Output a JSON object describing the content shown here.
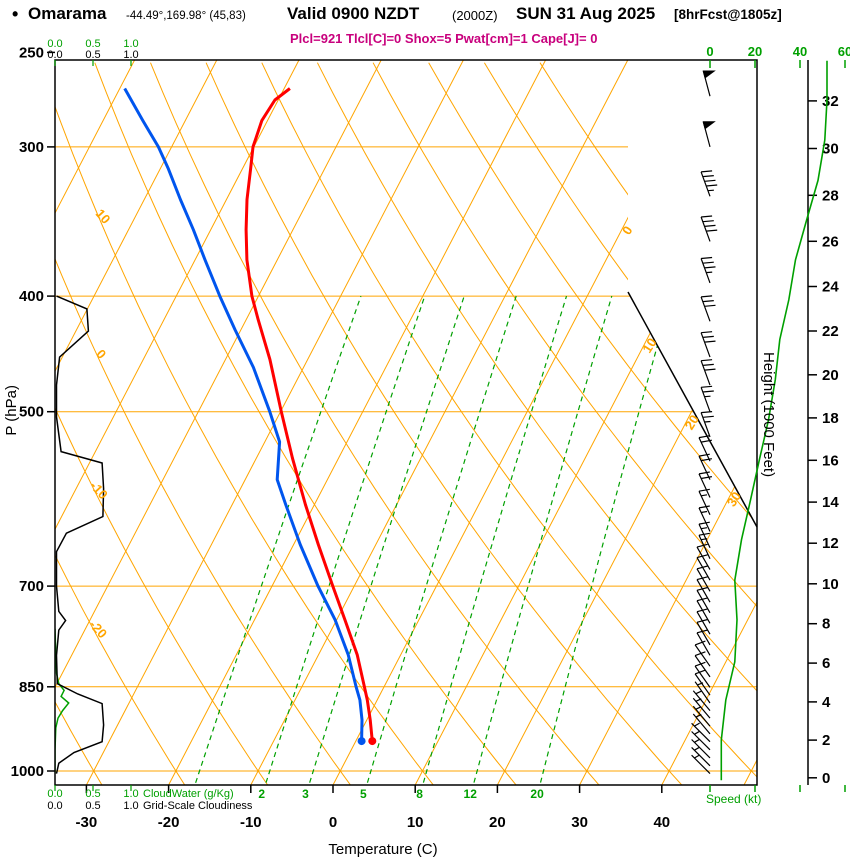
{
  "header": {
    "bullet": "•",
    "station": "Omarama",
    "coords": "-44.49°,169.98° (45,83)",
    "valid": "Valid 0900 NZDT",
    "valid_zulu": "(2000Z)",
    "date": "SUN 31 Aug 2025",
    "forecast": "[8hrFcst@1805z]",
    "indices": "Plcl=921 Tlcl[C]=0 Shox=5 Pwat[cm]=1 Cape[J]= 0"
  },
  "axes": {
    "pressure_label": "P (hPa)",
    "pressure_ticks": [
      250,
      300,
      400,
      500,
      700,
      850,
      1000
    ],
    "temperature_label": "Temperature (C)",
    "temperature_ticks": [
      -30,
      -20,
      -10,
      0,
      10,
      20,
      30,
      40
    ],
    "height_label": "Height (1000 Feet)",
    "height_ticks": [
      0,
      2,
      4,
      6,
      8,
      10,
      12,
      14,
      16,
      18,
      20,
      22,
      24,
      26,
      28,
      30,
      32
    ],
    "speed_label": "Speed (kt)",
    "speed_ticks": [
      0,
      20,
      40,
      60
    ],
    "cloud_scale": [
      "0.0",
      "0.5",
      "1.0"
    ],
    "cloudwater_label": "CloudWater (g/Kg)",
    "cloudiness_label": "Grid-Scale Cloudiness"
  },
  "colors": {
    "grid_orange": "#FFA500",
    "line_green": "#00A000",
    "temperature_red": "#FF0000",
    "dewpoint_blue": "#0055EE",
    "indices_magenta": "#C8007D",
    "black": "#000000"
  },
  "chart_data": {
    "type": "skewt-log-p-sounding",
    "pressure_range_hPa": [
      253,
      1040
    ],
    "temperature_axis_range_C": [
      -35,
      45
    ],
    "isobar_lines_hPa": [
      300,
      400,
      500,
      700,
      850,
      1000
    ],
    "isotherm_lines_degC": {
      "start": -80,
      "end": 50,
      "step": 10,
      "labeled": [
        0,
        10,
        20,
        30
      ]
    },
    "dry_adiabat_lines_degC": {
      "start": -30,
      "end": 100,
      "step": 10,
      "labeled": [
        -20,
        -10,
        0,
        10
      ]
    },
    "mixing_ratio_lines_gkg": [
      1,
      2,
      3,
      5,
      8,
      12,
      20
    ],
    "surface_point": {
      "p": 944,
      "t": 2.0,
      "td": 0.7
    },
    "temperature_profile_degC": [
      [
        944,
        2.0
      ],
      [
        906,
        0.4
      ],
      [
        872,
        -1.2
      ],
      [
        850,
        -2.4
      ],
      [
        799,
        -5.3
      ],
      [
        747,
        -9.0
      ],
      [
        700,
        -12.6
      ],
      [
        646,
        -17.0
      ],
      [
        598,
        -21.1
      ],
      [
        547,
        -25.6
      ],
      [
        500,
        -29.9
      ],
      [
        452,
        -34.6
      ],
      [
        419,
        -38.5
      ],
      [
        400,
        -40.8
      ],
      [
        373,
        -43.7
      ],
      [
        352,
        -45.7
      ],
      [
        332,
        -47.5
      ],
      [
        313,
        -49.0
      ],
      [
        300,
        -50.1
      ],
      [
        285,
        -50.7
      ],
      [
        274,
        -50.4
      ],
      [
        268,
        -49.3
      ]
    ],
    "dewpoint_profile_degC": [
      [
        944,
        0.7
      ],
      [
        906,
        -0.6
      ],
      [
        872,
        -2.1
      ],
      [
        850,
        -3.4
      ],
      [
        799,
        -6.4
      ],
      [
        747,
        -10.2
      ],
      [
        700,
        -14.4
      ],
      [
        646,
        -19.2
      ],
      [
        598,
        -23.5
      ],
      [
        570,
        -26.1
      ],
      [
        530,
        -28.2
      ],
      [
        500,
        -31.3
      ],
      [
        459,
        -36.1
      ],
      [
        427,
        -40.7
      ],
      [
        400,
        -44.7
      ],
      [
        373,
        -48.8
      ],
      [
        352,
        -52.1
      ],
      [
        332,
        -55.6
      ],
      [
        313,
        -59.0
      ],
      [
        300,
        -61.6
      ],
      [
        285,
        -65.2
      ],
      [
        268,
        -69.4
      ]
    ],
    "cloudiness_profile_frac": [
      [
        400,
        0.02
      ],
      [
        410,
        0.42
      ],
      [
        428,
        0.44
      ],
      [
        450,
        0.06
      ],
      [
        475,
        0.02
      ],
      [
        505,
        0.02
      ],
      [
        540,
        0.08
      ],
      [
        552,
        0.62
      ],
      [
        580,
        0.64
      ],
      [
        612,
        0.63
      ],
      [
        632,
        0.15
      ],
      [
        655,
        0.02
      ],
      [
        700,
        0.02
      ],
      [
        735,
        0.05
      ],
      [
        748,
        0.14
      ],
      [
        762,
        0.05
      ],
      [
        800,
        0.02
      ],
      [
        845,
        0.03
      ],
      [
        862,
        0.3
      ],
      [
        878,
        0.62
      ],
      [
        915,
        0.64
      ],
      [
        945,
        0.62
      ],
      [
        965,
        0.25
      ],
      [
        985,
        0.05
      ],
      [
        1005,
        0.02
      ]
    ],
    "cloudwater_profile_gkg": [
      [
        760,
        0.0
      ],
      [
        800,
        0.01
      ],
      [
        828,
        0.02
      ],
      [
        845,
        0.05
      ],
      [
        856,
        0.12
      ],
      [
        866,
        0.08
      ],
      [
        877,
        0.18
      ],
      [
        890,
        0.1
      ],
      [
        903,
        0.04
      ],
      [
        920,
        0.01
      ],
      [
        960,
        0.0
      ],
      [
        1005,
        0.0
      ]
    ],
    "wind_speed_profile_kt": [
      [
        1018,
        5
      ],
      [
        942,
        5
      ],
      [
        872,
        7
      ],
      [
        810,
        11
      ],
      [
        747,
        12
      ],
      [
        692,
        11
      ],
      [
        640,
        14
      ],
      [
        593,
        18
      ],
      [
        548,
        22
      ],
      [
        508,
        26
      ],
      [
        470,
        29
      ],
      [
        435,
        31
      ],
      [
        403,
        35
      ],
      [
        373,
        38
      ],
      [
        345,
        43
      ],
      [
        320,
        48
      ],
      [
        296,
        51
      ],
      [
        274,
        52
      ],
      [
        254,
        52
      ]
    ],
    "wind_barbs_p_kt_dir": [
      [
        1005,
        5,
        315
      ],
      [
        990,
        5,
        315
      ],
      [
        975,
        5,
        315
      ],
      [
        960,
        5,
        315
      ],
      [
        945,
        5,
        315
      ],
      [
        931,
        5,
        320
      ],
      [
        917,
        6,
        320
      ],
      [
        903,
        6,
        320
      ],
      [
        890,
        7,
        320
      ],
      [
        877,
        7,
        325
      ],
      [
        864,
        8,
        325
      ],
      [
        851,
        9,
        325
      ],
      [
        834,
        10,
        325
      ],
      [
        817,
        11,
        325
      ],
      [
        800,
        11,
        330
      ],
      [
        784,
        12,
        330
      ],
      [
        768,
        12,
        330
      ],
      [
        752,
        12,
        330
      ],
      [
        737,
        12,
        330
      ],
      [
        722,
        12,
        330
      ],
      [
        707,
        11,
        330
      ],
      [
        692,
        11,
        330
      ],
      [
        678,
        12,
        330
      ],
      [
        664,
        13,
        335
      ],
      [
        650,
        13,
        335
      ],
      [
        630,
        14,
        335
      ],
      [
        610,
        16,
        335
      ],
      [
        590,
        18,
        335
      ],
      [
        570,
        20,
        335
      ],
      [
        550,
        22,
        335
      ],
      [
        525,
        24,
        340
      ],
      [
        500,
        26,
        340
      ],
      [
        475,
        28,
        340
      ],
      [
        450,
        30,
        340
      ],
      [
        420,
        32,
        340
      ],
      [
        390,
        35,
        340
      ],
      [
        360,
        38,
        340
      ],
      [
        330,
        44,
        340
      ],
      [
        300,
        48,
        345
      ],
      [
        272,
        52,
        345
      ]
    ]
  }
}
